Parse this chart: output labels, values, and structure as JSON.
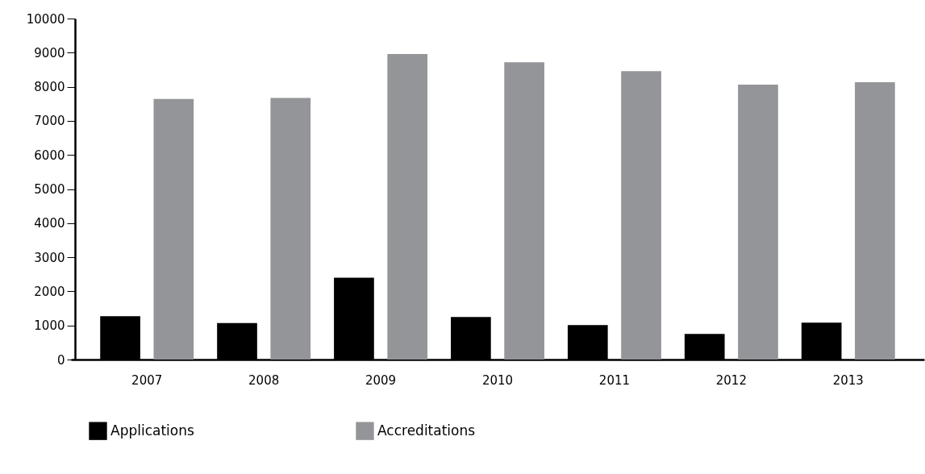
{
  "chart_data": {
    "type": "bar",
    "categories": [
      "2007",
      "2008",
      "2009",
      "2010",
      "2011",
      "2012",
      "2013"
    ],
    "series": [
      {
        "name": "Applications",
        "color": "#000000",
        "values": [
          1270,
          1070,
          2400,
          1250,
          1010,
          750,
          1080
        ]
      },
      {
        "name": "Accreditations",
        "color": "#939598",
        "values": [
          7640,
          7670,
          8960,
          8720,
          8460,
          8060,
          8130
        ]
      }
    ],
    "ylim": [
      0,
      10000
    ],
    "yticks": [
      0,
      1000,
      2000,
      3000,
      4000,
      5000,
      6000,
      7000,
      8000,
      9000,
      10000
    ],
    "grid": false,
    "legend": "bottom left"
  }
}
